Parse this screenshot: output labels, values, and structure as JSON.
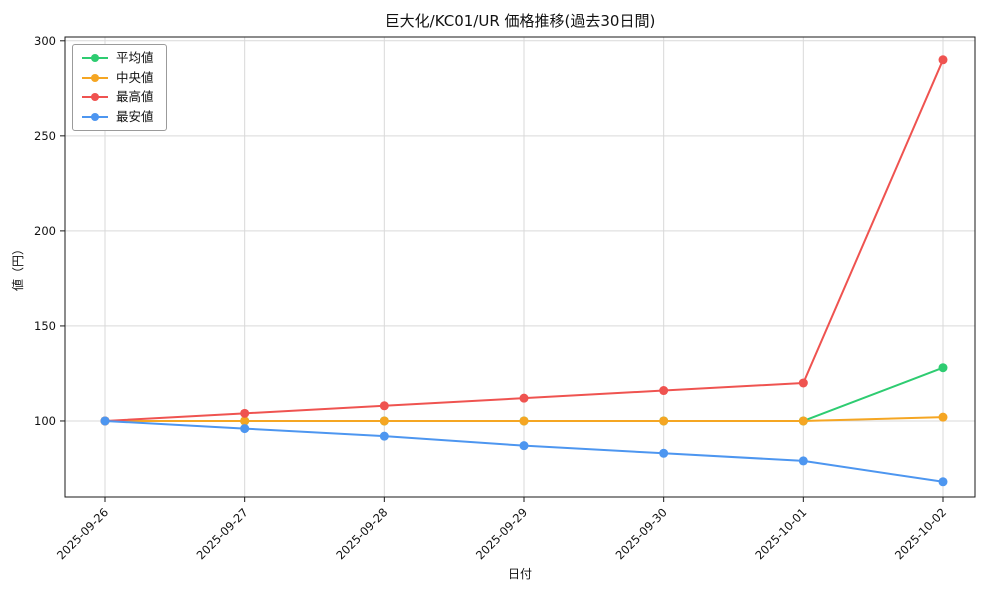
{
  "chart_data": {
    "type": "line",
    "title": "巨大化/KC01/UR 価格推移(過去30日間)",
    "xlabel": "日付",
    "ylabel": "値（円）",
    "x": [
      "2025-09-26",
      "2025-09-27",
      "2025-09-28",
      "2025-09-29",
      "2025-09-30",
      "2025-10-01",
      "2025-10-02"
    ],
    "series": [
      {
        "name": "平均値",
        "color": "#2ecc71",
        "values": [
          100,
          100,
          100,
          100,
          100,
          100,
          128
        ]
      },
      {
        "name": "中央値",
        "color": "#f5a623",
        "values": [
          100,
          100,
          100,
          100,
          100,
          100,
          102
        ]
      },
      {
        "name": "最高値",
        "color": "#ef5350",
        "values": [
          100,
          104,
          108,
          112,
          116,
          120,
          290
        ]
      },
      {
        "name": "最安値",
        "color": "#4d96f0",
        "values": [
          100,
          96,
          92,
          87,
          83,
          79,
          68
        ]
      }
    ],
    "yticks": [
      100,
      150,
      200,
      250,
      300
    ],
    "ylim": [
      60,
      302
    ],
    "grid": true,
    "legend_position": "upper-left",
    "grid_color": "#d9d9d9",
    "spine_color": "#1a1a1a"
  }
}
